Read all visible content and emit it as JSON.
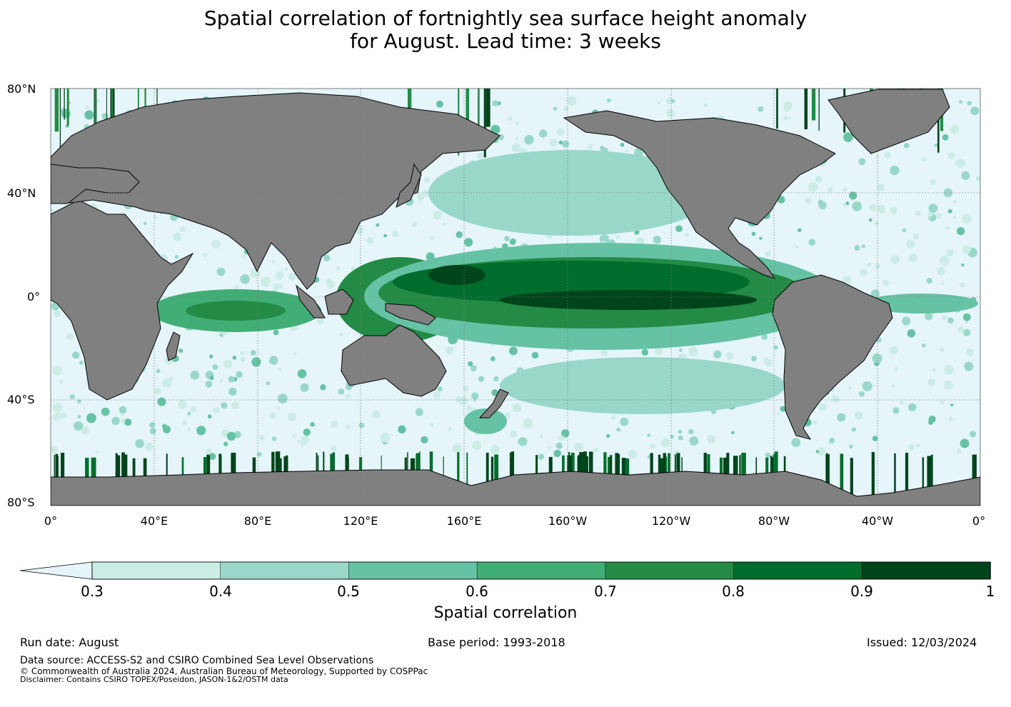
{
  "title": {
    "line1": "Spatial correlation of fortnightly sea surface height anomaly",
    "line2": "for August. Lead time: 3 weeks"
  },
  "lat_labels": [
    "80°N",
    "40°N",
    "0°",
    "40°S",
    "80°S"
  ],
  "lon_labels": [
    "0°",
    "40°E",
    "80°E",
    "120°E",
    "160°E",
    "160°W",
    "120°W",
    "80°W",
    "40°W",
    "0°"
  ],
  "colorbar": {
    "ticks": [
      "0.3",
      "0.4",
      "0.5",
      "0.6",
      "0.7",
      "0.8",
      "0.9",
      "1"
    ],
    "colors": [
      "#ccece6",
      "#99d8c9",
      "#66c2a4",
      "#41ae76",
      "#238b45",
      "#006d2c",
      "#00441b"
    ],
    "under_color": "#e5f5f9",
    "title": "Spatial correlation"
  },
  "map_colors": {
    "land": "#808080",
    "ocean_low": "#e5f5f9"
  },
  "footer": {
    "run_date": "Run date: August",
    "base_period": "Base period: 1993-2018",
    "issued": "Issued: 12/03/2024",
    "data_source": "Data source: ACCESS-S2 and CSIRO Combined Sea Level Observations",
    "copyright": "© Commonwealth of Australia 2024, Australian Bureau of Meteorology, Supported by COSPPac",
    "disclaimer": "Disclaimer: Contains CSIRO TOPEX/Poseidon, JASON-1&2/OSTM data"
  }
}
